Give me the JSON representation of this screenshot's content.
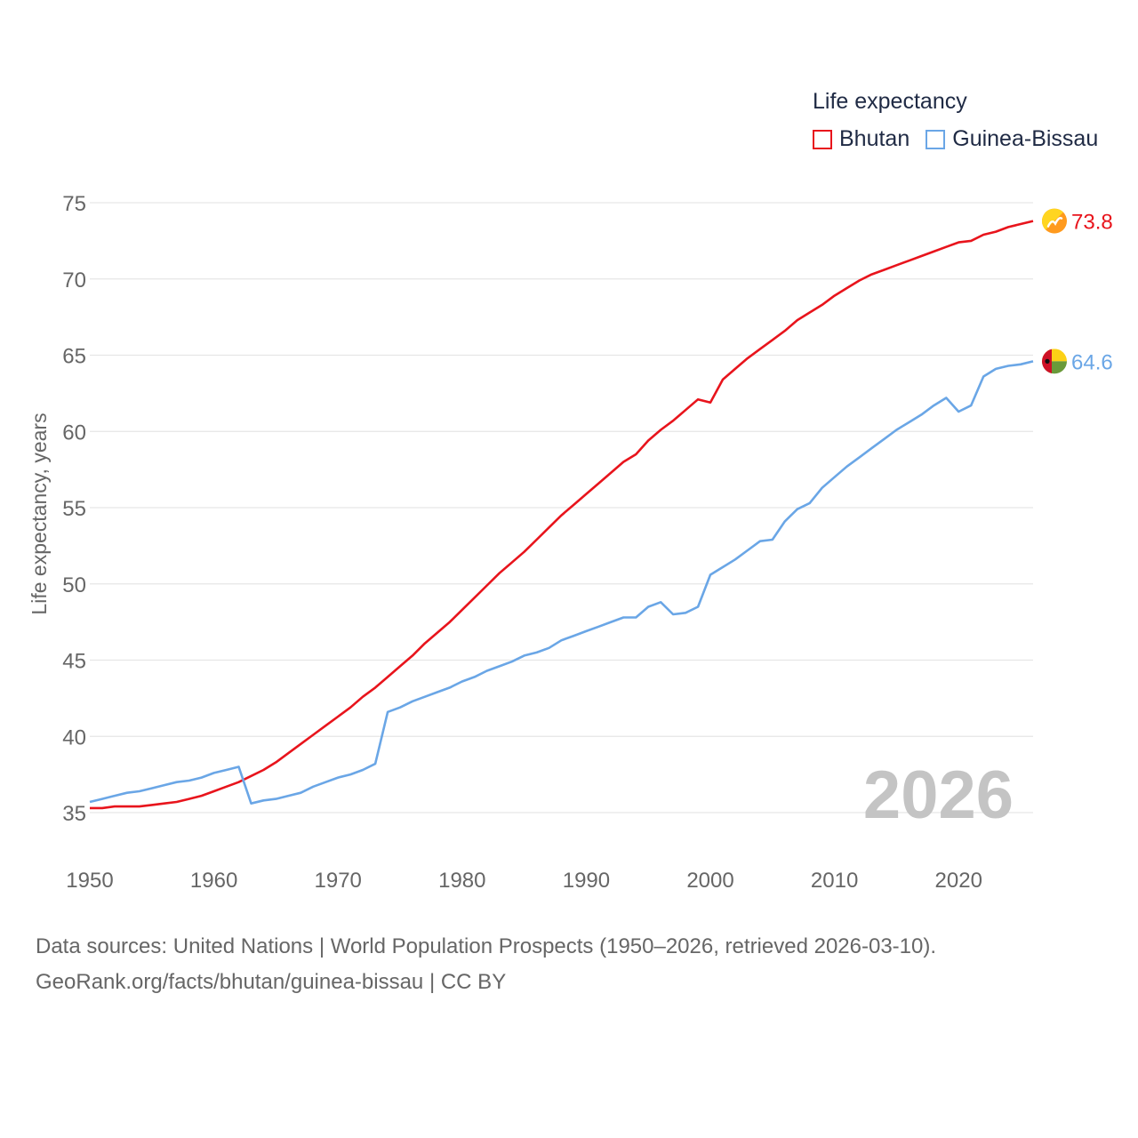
{
  "legend": {
    "title": "Life expectancy"
  },
  "footer": {
    "line1": "Data sources: United Nations | World Population Prospects (1950–2026, retrieved 2026-03-10).",
    "line2": "GeoRank.org/facts/bhutan/guinea-bissau | CC BY"
  },
  "chart_data": {
    "type": "line",
    "title": "Life expectancy",
    "xlabel": "",
    "ylabel": "Life expectancy, years",
    "xlim": [
      1950,
      2026
    ],
    "ylim": [
      35,
      75
    ],
    "x_ticks": [
      1950,
      1960,
      1970,
      1980,
      1990,
      2000,
      2010,
      2020
    ],
    "y_ticks": [
      35,
      40,
      45,
      50,
      55,
      60,
      65,
      70,
      75
    ],
    "grid": true,
    "year_watermark": "2026",
    "legend_position": "top-right",
    "series": [
      {
        "name": "Bhutan",
        "color": "#e8141c",
        "end_label": "73.8",
        "flag": "bhutan-flag",
        "points": [
          [
            1950,
            35.3
          ],
          [
            1951,
            35.3
          ],
          [
            1952,
            35.4
          ],
          [
            1953,
            35.4
          ],
          [
            1954,
            35.4
          ],
          [
            1955,
            35.5
          ],
          [
            1956,
            35.6
          ],
          [
            1957,
            35.7
          ],
          [
            1958,
            35.9
          ],
          [
            1959,
            36.1
          ],
          [
            1960,
            36.4
          ],
          [
            1961,
            36.7
          ],
          [
            1962,
            37.0
          ],
          [
            1963,
            37.4
          ],
          [
            1964,
            37.8
          ],
          [
            1965,
            38.3
          ],
          [
            1966,
            38.9
          ],
          [
            1967,
            39.5
          ],
          [
            1968,
            40.1
          ],
          [
            1969,
            40.7
          ],
          [
            1970,
            41.3
          ],
          [
            1971,
            41.9
          ],
          [
            1972,
            42.6
          ],
          [
            1973,
            43.2
          ],
          [
            1974,
            43.9
          ],
          [
            1975,
            44.6
          ],
          [
            1976,
            45.3
          ],
          [
            1977,
            46.1
          ],
          [
            1978,
            46.8
          ],
          [
            1979,
            47.5
          ],
          [
            1980,
            48.3
          ],
          [
            1981,
            49.1
          ],
          [
            1982,
            49.9
          ],
          [
            1983,
            50.7
          ],
          [
            1984,
            51.4
          ],
          [
            1985,
            52.1
          ],
          [
            1986,
            52.9
          ],
          [
            1987,
            53.7
          ],
          [
            1988,
            54.5
          ],
          [
            1989,
            55.2
          ],
          [
            1990,
            55.9
          ],
          [
            1991,
            56.6
          ],
          [
            1992,
            57.3
          ],
          [
            1993,
            58.0
          ],
          [
            1994,
            58.5
          ],
          [
            1995,
            59.4
          ],
          [
            1996,
            60.1
          ],
          [
            1997,
            60.7
          ],
          [
            1998,
            61.4
          ],
          [
            1999,
            62.1
          ],
          [
            2000,
            61.9
          ],
          [
            2001,
            63.4
          ],
          [
            2002,
            64.1
          ],
          [
            2003,
            64.8
          ],
          [
            2004,
            65.4
          ],
          [
            2005,
            66.0
          ],
          [
            2006,
            66.6
          ],
          [
            2007,
            67.3
          ],
          [
            2008,
            67.8
          ],
          [
            2009,
            68.3
          ],
          [
            2010,
            68.9
          ],
          [
            2011,
            69.4
          ],
          [
            2012,
            69.9
          ],
          [
            2013,
            70.3
          ],
          [
            2014,
            70.6
          ],
          [
            2015,
            70.9
          ],
          [
            2016,
            71.2
          ],
          [
            2017,
            71.5
          ],
          [
            2018,
            71.8
          ],
          [
            2019,
            72.1
          ],
          [
            2020,
            72.4
          ],
          [
            2021,
            72.5
          ],
          [
            2022,
            72.9
          ],
          [
            2023,
            73.1
          ],
          [
            2024,
            73.4
          ],
          [
            2025,
            73.6
          ],
          [
            2026,
            73.8
          ]
        ]
      },
      {
        "name": "Guinea-Bissau",
        "color": "#6aa6e6",
        "end_label": "64.6",
        "flag": "guinea-bissau-flag",
        "points": [
          [
            1950,
            35.7
          ],
          [
            1951,
            35.9
          ],
          [
            1952,
            36.1
          ],
          [
            1953,
            36.3
          ],
          [
            1954,
            36.4
          ],
          [
            1955,
            36.6
          ],
          [
            1956,
            36.8
          ],
          [
            1957,
            37.0
          ],
          [
            1958,
            37.1
          ],
          [
            1959,
            37.3
          ],
          [
            1960,
            37.6
          ],
          [
            1961,
            37.8
          ],
          [
            1962,
            38.0
          ],
          [
            1963,
            35.6
          ],
          [
            1964,
            35.8
          ],
          [
            1965,
            35.9
          ],
          [
            1966,
            36.1
          ],
          [
            1967,
            36.3
          ],
          [
            1968,
            36.7
          ],
          [
            1969,
            37.0
          ],
          [
            1970,
            37.3
          ],
          [
            1971,
            37.5
          ],
          [
            1972,
            37.8
          ],
          [
            1973,
            38.2
          ],
          [
            1974,
            41.6
          ],
          [
            1975,
            41.9
          ],
          [
            1976,
            42.3
          ],
          [
            1977,
            42.6
          ],
          [
            1978,
            42.9
          ],
          [
            1979,
            43.2
          ],
          [
            1980,
            43.6
          ],
          [
            1981,
            43.9
          ],
          [
            1982,
            44.3
          ],
          [
            1983,
            44.6
          ],
          [
            1984,
            44.9
          ],
          [
            1985,
            45.3
          ],
          [
            1986,
            45.5
          ],
          [
            1987,
            45.8
          ],
          [
            1988,
            46.3
          ],
          [
            1989,
            46.6
          ],
          [
            1990,
            46.9
          ],
          [
            1991,
            47.2
          ],
          [
            1992,
            47.5
          ],
          [
            1993,
            47.8
          ],
          [
            1994,
            47.8
          ],
          [
            1995,
            48.5
          ],
          [
            1996,
            48.8
          ],
          [
            1997,
            48.0
          ],
          [
            1998,
            48.1
          ],
          [
            1999,
            48.5
          ],
          [
            2000,
            50.6
          ],
          [
            2001,
            51.1
          ],
          [
            2002,
            51.6
          ],
          [
            2003,
            52.2
          ],
          [
            2004,
            52.8
          ],
          [
            2005,
            52.9
          ],
          [
            2006,
            54.1
          ],
          [
            2007,
            54.9
          ],
          [
            2008,
            55.3
          ],
          [
            2009,
            56.3
          ],
          [
            2010,
            57.0
          ],
          [
            2011,
            57.7
          ],
          [
            2012,
            58.3
          ],
          [
            2013,
            58.9
          ],
          [
            2014,
            59.5
          ],
          [
            2015,
            60.1
          ],
          [
            2016,
            60.6
          ],
          [
            2017,
            61.1
          ],
          [
            2018,
            61.7
          ],
          [
            2019,
            62.2
          ],
          [
            2020,
            61.3
          ],
          [
            2021,
            61.7
          ],
          [
            2022,
            63.6
          ],
          [
            2023,
            64.1
          ],
          [
            2024,
            64.3
          ],
          [
            2025,
            64.4
          ],
          [
            2026,
            64.6
          ]
        ]
      }
    ]
  }
}
